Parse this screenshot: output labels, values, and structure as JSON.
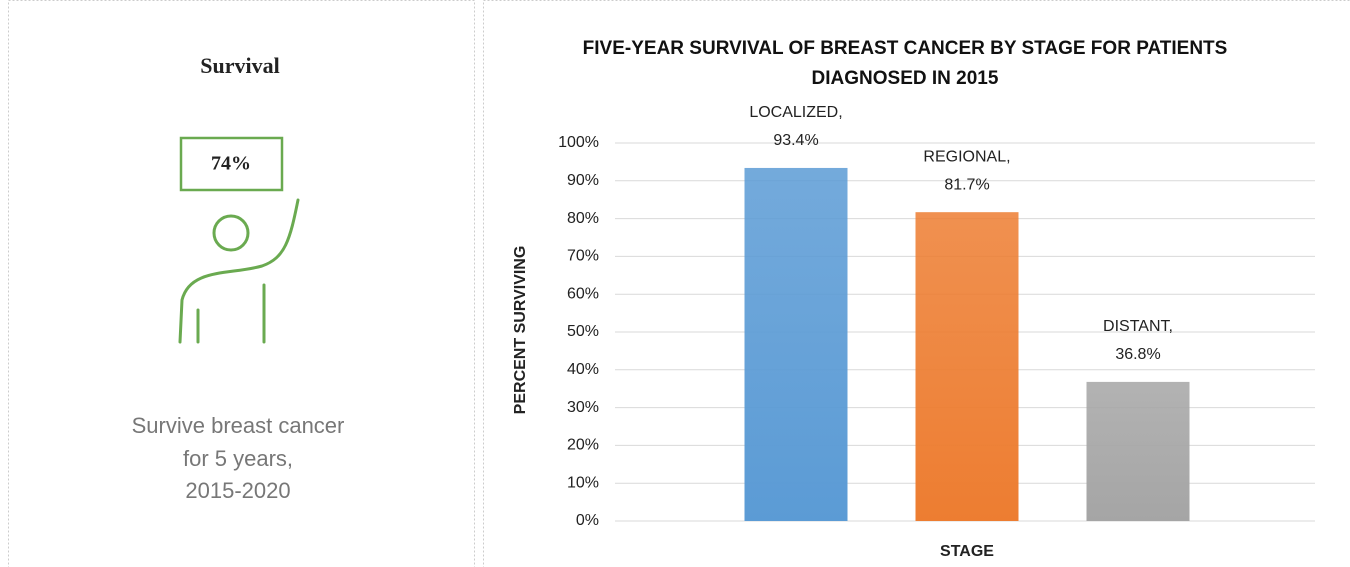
{
  "panel": {
    "title": "Survival",
    "stat": "74%",
    "caption_lines": [
      "Survive breast cancer",
      "for 5 years,",
      "2015-2020"
    ]
  },
  "chart_data": {
    "type": "bar",
    "title": "FIVE-YEAR SURVIVAL OF BREAST CANCER BY STAGE FOR PATIENTS DIAGNOSED IN 2015",
    "x_label": "STAGE",
    "y_label": "PERCENT SURVIVING",
    "categories": [
      "LOCALIZED,",
      "REGIONAL,",
      "DISTANT,"
    ],
    "values": [
      93.4,
      81.7,
      36.8
    ],
    "value_labels": [
      "93.4%",
      "81.7%",
      "36.8%"
    ],
    "colors": [
      "#5b9bd5",
      "#ed7d31",
      "#a5a5a5"
    ],
    "ylim": [
      0,
      100
    ],
    "yticks": [
      {
        "value": 0,
        "label": "0%"
      },
      {
        "value": 10,
        "label": "10%"
      },
      {
        "value": 20,
        "label": "20%"
      },
      {
        "value": 30,
        "label": "30%"
      },
      {
        "value": 40,
        "label": "40%"
      },
      {
        "value": 50,
        "label": "50%"
      },
      {
        "value": 60,
        "label": "60%"
      },
      {
        "value": 70,
        "label": "70%"
      },
      {
        "value": 80,
        "label": "80%"
      },
      {
        "value": 90,
        "label": "90%"
      },
      {
        "value": 100,
        "label": "100%"
      }
    ],
    "grid": true
  }
}
